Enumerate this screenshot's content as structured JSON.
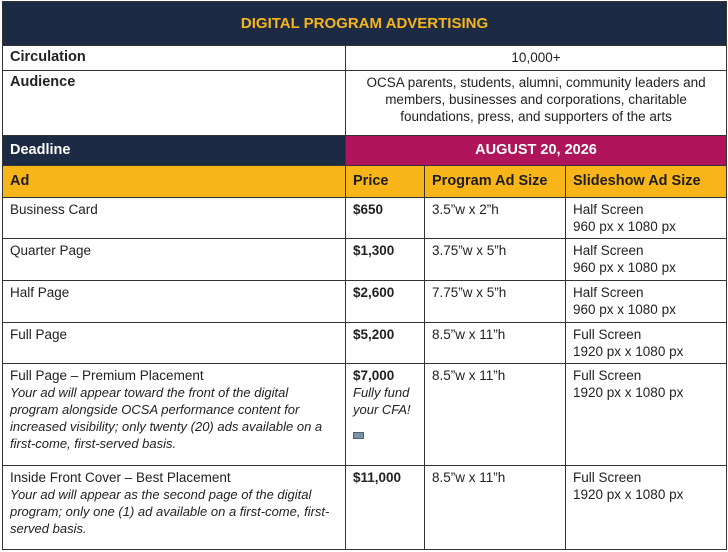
{
  "header": {
    "title": "DIGITAL PROGRAM ADVERTISING"
  },
  "info": {
    "rows": [
      {
        "label": "Circulation",
        "value": "10,000+"
      },
      {
        "label": "Audience",
        "value": "OCSA parents, students, alumni, community leaders and members, businesses and corporations, charitable foundations, press, and supporters of the arts"
      }
    ]
  },
  "deadline": {
    "label": "Deadline",
    "date": "AUGUST 20, 2026"
  },
  "table": {
    "columns": [
      "Ad",
      "Price",
      "Program Ad Size",
      "Slideshow Ad Size"
    ],
    "rows": [
      {
        "ad": "Business Card",
        "price": "$650",
        "program_size": "3.5”w x 2”h",
        "slideshow_size": "Half Screen",
        "slideshow_pixels": "960 px x 1080 px"
      },
      {
        "ad": "Quarter Page",
        "price": "$1,300",
        "program_size": "3.75”w x 5”h",
        "slideshow_size": "Half Screen",
        "slideshow_pixels": "960 px x 1080 px"
      },
      {
        "ad": "Half Page",
        "price": "$2,600",
        "program_size": "7.75”w x 5”h",
        "slideshow_size": "Half Screen",
        "slideshow_pixels": "960 px x 1080 px"
      },
      {
        "ad": "Full Page",
        "price": "$5,200",
        "program_size": "8.5”w x 11”h",
        "slideshow_size": "Full Screen",
        "slideshow_pixels": "1920 px x 1080 px"
      },
      {
        "ad": "Full Page – Premium Placement",
        "description": "Your ad will appear toward the front of the digital program alongside OCSA performance content for increased visibility; only twenty (20) ads available on a first-come, first-served basis.",
        "price": "$7,000",
        "price_note": "Fully fund your CFA!",
        "program_size": "8.5”w x 11”h",
        "slideshow_size": "Full Screen",
        "slideshow_pixels": "1920 px x 1080 px"
      },
      {
        "ad": "Inside Front Cover – Best Placement",
        "description": "Your ad will appear as the second page of the digital program; only one (1) ad available on a first-come, first-served basis.",
        "price": "$11,000",
        "program_size": "8.5”w x 11”h",
        "slideshow_size": "Full Screen",
        "slideshow_pixels": "1920 px x 1080 px"
      }
    ]
  }
}
